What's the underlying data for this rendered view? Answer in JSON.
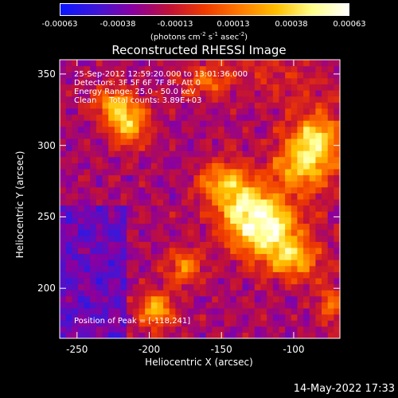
{
  "colorbar": {
    "colors": [
      "#0b16ff",
      "#3e16d8",
      "#8a00a0",
      "#c0103a",
      "#ee3a00",
      "#ff7b00",
      "#ffc000",
      "#ffff8c",
      "#ffffff"
    ],
    "tick_labels": [
      "-0.00063",
      "-0.00038",
      "-0.00013",
      "0.00013",
      "0.00038",
      "0.00063"
    ],
    "units_label": "(photons cm",
    "units_sup1": "-2",
    "units_mid": " s",
    "units_sup2": "-1",
    "units_mid2": " asec",
    "units_sup3": "-2",
    "units_end": ")"
  },
  "chart_data": {
    "type": "heatmap",
    "title": "Reconstructed RHESSI Image",
    "xlabel": "Heliocentric X (arcsec)",
    "ylabel": "Heliocentric Y (arcsec)",
    "xlim": [
      -262,
      -68
    ],
    "ylim": [
      165,
      360
    ],
    "x_ticks": [
      -250,
      -200,
      -150,
      -100
    ],
    "y_ticks": [
      200,
      250,
      300,
      350
    ],
    "value_range": [
      -0.00063,
      0.00063
    ],
    "peak": [
      -118,
      241
    ],
    "bright_regions": [
      {
        "x": -118,
        "y": 241,
        "intensity": 1.0,
        "sx": 16,
        "sy": 14
      },
      {
        "x": -132,
        "y": 255,
        "intensity": 0.85,
        "sx": 14,
        "sy": 12
      },
      {
        "x": -95,
        "y": 285,
        "intensity": 0.8,
        "sx": 14,
        "sy": 12
      },
      {
        "x": -85,
        "y": 305,
        "intensity": 0.75,
        "sx": 10,
        "sy": 10
      },
      {
        "x": -148,
        "y": 275,
        "intensity": 0.7,
        "sx": 12,
        "sy": 10
      },
      {
        "x": -100,
        "y": 220,
        "intensity": 0.65,
        "sx": 12,
        "sy": 10
      },
      {
        "x": -215,
        "y": 315,
        "intensity": 0.8,
        "sx": 10,
        "sy": 10
      },
      {
        "x": -225,
        "y": 330,
        "intensity": 0.6,
        "sx": 10,
        "sy": 8
      },
      {
        "x": -195,
        "y": 185,
        "intensity": 0.75,
        "sx": 8,
        "sy": 9
      },
      {
        "x": -175,
        "y": 215,
        "intensity": 0.55,
        "sx": 9,
        "sy": 9
      },
      {
        "x": -160,
        "y": 345,
        "intensity": 0.45,
        "sx": 12,
        "sy": 8
      },
      {
        "x": -75,
        "y": 190,
        "intensity": 0.45,
        "sx": 6,
        "sy": 10
      }
    ]
  },
  "annotations": {
    "time_range": "25-Sep-2012 12:59:20.000 to 13:01:36.000",
    "detectors": "Detectors: 3F 5F 6F 7F 8F, Att 0",
    "energy": "Energy Range: 25.0 - 50.0 keV",
    "clean": "Clean     Total counts: 3.89E+03",
    "peak": "Position of Peak = [-118,241]"
  },
  "footer": {
    "date": "14-May-2022 17:33"
  }
}
